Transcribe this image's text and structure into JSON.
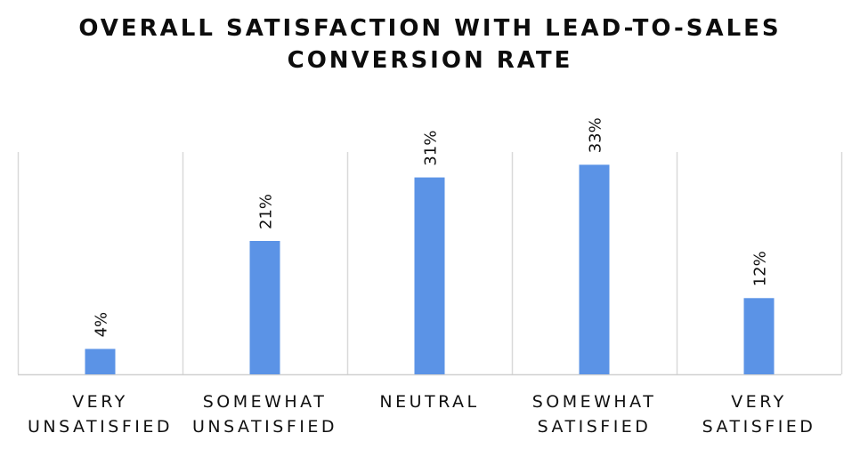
{
  "chart_data": {
    "type": "bar",
    "title_lines": [
      "OVERALL SATISFACTION WITH LEAD-TO-SALES",
      "CONVERSION RATE"
    ],
    "categories": [
      [
        "VERY",
        "UNSATISFIED"
      ],
      [
        "SOMEWHAT",
        "UNSATISFIED"
      ],
      [
        "NEUTRAL"
      ],
      [
        "SOMEWHAT",
        "SATISFIED"
      ],
      [
        "VERY",
        "SATISFIED"
      ]
    ],
    "values": [
      4,
      21,
      31,
      33,
      12
    ],
    "data_labels": [
      "4%",
      "21%",
      "31%",
      "33%",
      "12%"
    ],
    "unit": "%",
    "ylim": [
      0,
      35
    ],
    "xlabel": "",
    "ylabel": "",
    "grid": false,
    "bar_color": "#5b93e6"
  }
}
